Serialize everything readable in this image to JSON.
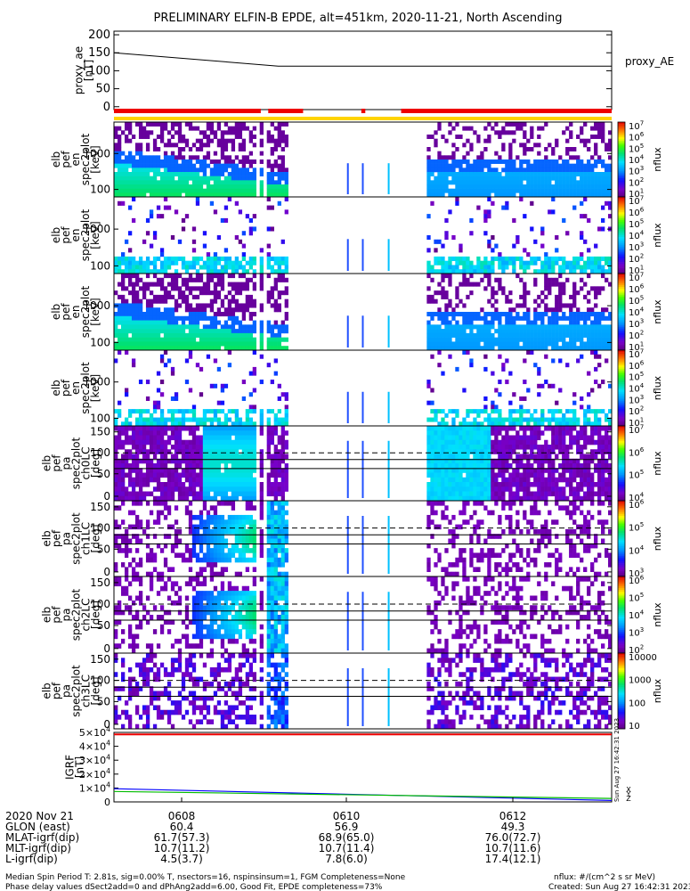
{
  "title": "PRELIMINARY ELFIN-B EPDE, alt=451km, 2020-11-21, North Ascending",
  "colors": {
    "ae_line": "#000000",
    "bar_red": "#ee0000",
    "bar_yellow": "#ffd400",
    "igrf_blue": "#0000ff",
    "igrf_green": "#00bb00",
    "igrf_red": "#ee0000"
  },
  "chart_data": [
    {
      "type": "line",
      "id": "proxy_ae",
      "ylabel": "proxy_ae\n[nT]",
      "legend": "proxy_AE",
      "yticks": [
        "200",
        "150",
        "100",
        "50",
        "0"
      ],
      "ylim": [
        -8,
        210
      ],
      "series": [
        {
          "name": "proxy_AE",
          "x": [
            0,
            0.33,
            1.0
          ],
          "y": [
            150,
            113,
            113
          ]
        }
      ]
    },
    {
      "type": "bar",
      "id": "orbit_flags",
      "red_segments": [
        [
          0.0,
          0.295
        ],
        [
          0.31,
          0.38
        ],
        [
          0.497,
          0.505
        ],
        [
          0.577,
          1.0
        ]
      ],
      "yellow_segments": [
        [
          0.0,
          1.0
        ]
      ]
    },
    {
      "type": "heatmap",
      "id": "spec_en_1",
      "ylabel": "elb\npef\nen\nspec2plot\n[keV]",
      "yticks": [
        "1000",
        "100"
      ],
      "colorbar_ticks": [
        "10^7",
        "10^6",
        "10^5",
        "10^4",
        "10^3",
        "10^2",
        "10^1"
      ],
      "colorbar_label": "nflux",
      "seed": 11,
      "profile": "energy_strong"
    },
    {
      "type": "heatmap",
      "id": "spec_en_2",
      "ylabel": "elb\npef\nen\nspec2plot\n[keV]",
      "yticks": [
        "1000",
        "100"
      ],
      "colorbar_ticks": [
        "10^7",
        "10^6",
        "10^5",
        "10^4",
        "10^3",
        "10^2",
        "10^1"
      ],
      "colorbar_label": "nflux",
      "seed": 23,
      "profile": "energy_weak"
    },
    {
      "type": "heatmap",
      "id": "spec_en_3",
      "ylabel": "elb\npef\nen\nspec2plot\n[keV]",
      "yticks": [
        "1000",
        "100"
      ],
      "colorbar_ticks": [
        "10^7",
        "10^6",
        "10^5",
        "10^4",
        "10^3",
        "10^2",
        "10^1"
      ],
      "colorbar_label": "nflux",
      "seed": 37,
      "profile": "energy_strong"
    },
    {
      "type": "heatmap",
      "id": "spec_en_4",
      "ylabel": "elb\npef\nen\nspec2plot\n[keV]",
      "yticks": [
        "1000",
        "100"
      ],
      "colorbar_ticks": [
        "10^7",
        "10^6",
        "10^5",
        "10^4",
        "10^3",
        "10^2",
        "10^1"
      ],
      "colorbar_label": "nflux",
      "seed": 41,
      "profile": "energy_weak"
    },
    {
      "type": "heatmap",
      "id": "spec_pa_0",
      "ylabel": "elb\npef\npa\nspec2plot\nch0LC\n[deg]",
      "yticks": [
        "150",
        "100",
        "50",
        "0"
      ],
      "colorbar_ticks": [
        "10^7",
        "10^6",
        "10^5",
        "10^4"
      ],
      "colorbar_label": "nflux",
      "seed": 53,
      "profile": "pitch_strong"
    },
    {
      "type": "heatmap",
      "id": "spec_pa_1",
      "ylabel": "elb\npef\npa\nspec2plot\nch1LC\n[deg]",
      "yticks": [
        "150",
        "100",
        "50",
        "0"
      ],
      "colorbar_ticks": [
        "10^6",
        "10^5",
        "10^4",
        "10^3"
      ],
      "colorbar_label": "nflux",
      "seed": 67,
      "profile": "pitch_mid"
    },
    {
      "type": "heatmap",
      "id": "spec_pa_2",
      "ylabel": "elb\npef\npa\nspec2plot\nch2LC\n[deg]",
      "yticks": [
        "150",
        "100",
        "50",
        "0"
      ],
      "colorbar_ticks": [
        "10^6",
        "10^5",
        "10^4",
        "10^3",
        "10^2"
      ],
      "colorbar_label": "nflux",
      "seed": 71,
      "profile": "pitch_mid"
    },
    {
      "type": "heatmap",
      "id": "spec_pa_3",
      "ylabel": "elb\npef\npa\nspec2plot\nch3LC\n[deg]",
      "yticks": [
        "150",
        "100",
        "50",
        "0"
      ],
      "colorbar_ticks": [
        "10000",
        "1000",
        "100",
        "10"
      ],
      "colorbar_label": "nflux",
      "seed": 89,
      "profile": "pitch_sparse"
    },
    {
      "type": "line",
      "id": "igrf",
      "ylabel": "IGRF\n[nT]",
      "yticks": [
        "5×10^4",
        "4×10^4",
        "3×10^4",
        "2×10^4",
        "1×10^4",
        "0"
      ],
      "ylim": [
        0,
        50000
      ],
      "series": [
        {
          "name": "X",
          "x": [
            0,
            1
          ],
          "y": [
            48500,
            48500
          ]
        },
        {
          "name": "Y",
          "x": [
            0,
            1
          ],
          "y": [
            9500,
            1000
          ]
        },
        {
          "name": "Z",
          "x": [
            0,
            1
          ],
          "y": [
            7500,
            2500
          ]
        }
      ],
      "side_label": "Sun Aug 27 16:42:31 2023",
      "component_labels": [
        "X",
        "Y",
        "Z"
      ]
    }
  ],
  "footer": {
    "rows": [
      {
        "label": "2020 Nov 21",
        "values": [
          "0608",
          "0610",
          "0612"
        ]
      },
      {
        "label": "GLON (east)",
        "values": [
          "60.4",
          "56.9",
          "49.3"
        ]
      },
      {
        "label": "MLAT-igrf(dip)",
        "values": [
          "61.7(57.3)",
          "68.9(65.0)",
          "76.0(72.7)"
        ]
      },
      {
        "label": "MLT-igrf(dip)",
        "values": [
          "10.7(11.2)",
          "10.7(11.4)",
          "10.7(11.6)"
        ]
      },
      {
        "label": "L-igrf(dip)",
        "values": [
          "4.5(3.7)",
          "7.8(6.0)",
          "17.4(12.1)"
        ]
      }
    ],
    "note_line1": "Median Spin Period T: 2.81s, sig=0.00% T, nsectors=16, nspinsinsum=1, FGM Completeness=None",
    "note_line2": "Phase delay values dSect2add=0 and dPhAng2add=6.00, Good Fit, EPDE completeness=73%",
    "units_note": "nflux: #/(cm^2 s sr MeV)",
    "created": "Created: Sun Aug 27 16:42:31 2023"
  }
}
